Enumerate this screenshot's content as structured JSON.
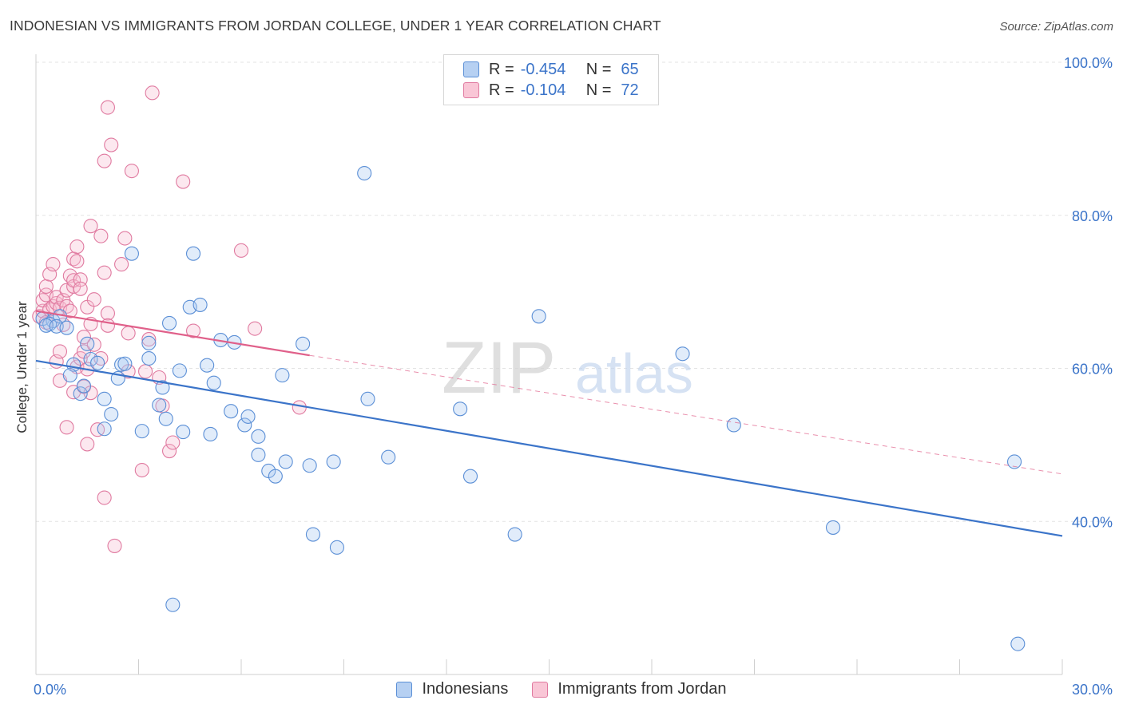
{
  "title": "INDONESIAN VS IMMIGRANTS FROM JORDAN COLLEGE, UNDER 1 YEAR CORRELATION CHART",
  "source": "Source: ZipAtlas.com",
  "watermark": {
    "part1": "ZIP",
    "part2": "atlas"
  },
  "legend": {
    "rows": [
      {
        "r_label": "R =",
        "r_value": "-0.454",
        "n_label": "N =",
        "n_value": "65",
        "color": "#a9c8f0",
        "border": "#5b8fd6"
      },
      {
        "r_label": "R =",
        "r_value": "-0.104",
        "n_label": "N =",
        "n_value": "72",
        "color": "#f7bcd0",
        "border": "#e07aa0"
      }
    ]
  },
  "bottom_legend": [
    {
      "label": "Indonesians",
      "color": "#b6d0f2",
      "border": "#5b8fd6"
    },
    {
      "label": "Immigrants from Jordan",
      "color": "#f9c6d6",
      "border": "#e07aa0"
    }
  ],
  "chart_data": {
    "type": "scatter",
    "title": "INDONESIAN VS IMMIGRANTS FROM JORDAN COLLEGE, UNDER 1 YEAR CORRELATION CHART",
    "xlabel": "",
    "ylabel": "College, Under 1 year",
    "xlim": [
      0,
      30
    ],
    "ylim": [
      20,
      100
    ],
    "x_tick_labels": [
      "0.0%",
      "30.0%"
    ],
    "y_ticks": [
      40,
      60,
      80,
      100
    ],
    "y_tick_labels": [
      "40.0%",
      "60.0%",
      "80.0%",
      "100.0%"
    ],
    "colors": {
      "blue": "#3b74c9",
      "pink": "#e0608a",
      "tick_label": "#3b74c9"
    },
    "series": [
      {
        "name": "Indonesians",
        "color": "#5b8fd6",
        "fill": "rgba(169,200,240,0.35)",
        "trend": {
          "x": [
            0,
            30
          ],
          "y": [
            61,
            38.1
          ],
          "dashed": false
        },
        "points": [
          [
            0.2,
            66.5
          ],
          [
            0.5,
            66.2
          ],
          [
            0.4,
            65.8
          ],
          [
            0.3,
            65.6
          ],
          [
            0.7,
            66.8
          ],
          [
            0.6,
            65.5
          ],
          [
            0.9,
            65.3
          ],
          [
            1.1,
            60.5
          ],
          [
            1.0,
            59.1
          ],
          [
            1.3,
            56.7
          ],
          [
            1.4,
            57.7
          ],
          [
            1.5,
            63.2
          ],
          [
            1.6,
            61.2
          ],
          [
            1.8,
            60.7
          ],
          [
            2.0,
            56.0
          ],
          [
            2.2,
            54.0
          ],
          [
            2.0,
            52.1
          ],
          [
            2.4,
            58.7
          ],
          [
            2.5,
            60.5
          ],
          [
            2.6,
            60.6
          ],
          [
            2.8,
            75.0
          ],
          [
            3.1,
            51.8
          ],
          [
            3.3,
            63.3
          ],
          [
            3.3,
            61.3
          ],
          [
            3.6,
            55.2
          ],
          [
            3.7,
            57.5
          ],
          [
            3.8,
            53.4
          ],
          [
            3.9,
            65.9
          ],
          [
            4.0,
            29.1
          ],
          [
            4.2,
            59.7
          ],
          [
            4.3,
            51.7
          ],
          [
            4.5,
            68.0
          ],
          [
            4.6,
            75.0
          ],
          [
            4.8,
            68.3
          ],
          [
            5.0,
            60.4
          ],
          [
            5.1,
            51.4
          ],
          [
            5.2,
            58.1
          ],
          [
            5.4,
            63.7
          ],
          [
            5.7,
            54.4
          ],
          [
            5.8,
            63.4
          ],
          [
            6.1,
            52.6
          ],
          [
            6.2,
            53.7
          ],
          [
            6.5,
            51.1
          ],
          [
            6.5,
            48.7
          ],
          [
            6.8,
            46.6
          ],
          [
            7.0,
            45.9
          ],
          [
            7.2,
            59.1
          ],
          [
            7.3,
            47.8
          ],
          [
            7.8,
            63.2
          ],
          [
            8.0,
            47.3
          ],
          [
            8.1,
            38.3
          ],
          [
            8.7,
            47.8
          ],
          [
            8.8,
            36.6
          ],
          [
            9.6,
            85.5
          ],
          [
            9.7,
            56.0
          ],
          [
            10.3,
            48.4
          ],
          [
            12.4,
            54.7
          ],
          [
            12.7,
            45.9
          ],
          [
            14.0,
            38.3
          ],
          [
            14.7,
            66.8
          ],
          [
            18.9,
            61.9
          ],
          [
            20.4,
            52.6
          ],
          [
            23.3,
            39.2
          ],
          [
            28.6,
            47.8
          ],
          [
            28.7,
            24.0
          ]
        ]
      },
      {
        "name": "Immigrants from Jordan",
        "color": "#e07aa0",
        "fill": "rgba(247,188,208,0.35)",
        "trend": {
          "x": [
            0,
            8.0
          ],
          "y": [
            67.5,
            61.7
          ],
          "dashed": false,
          "ext_x": [
            8.0,
            30
          ],
          "ext_y": [
            61.7,
            46.2
          ]
        },
        "points": [
          [
            0.1,
            66.8
          ],
          [
            0.2,
            67.5
          ],
          [
            0.2,
            68.9
          ],
          [
            0.3,
            69.6
          ],
          [
            0.3,
            66.0
          ],
          [
            0.3,
            70.7
          ],
          [
            0.4,
            67.7
          ],
          [
            0.4,
            72.3
          ],
          [
            0.5,
            73.6
          ],
          [
            0.5,
            68.1
          ],
          [
            0.6,
            68.5
          ],
          [
            0.6,
            69.3
          ],
          [
            0.6,
            60.9
          ],
          [
            0.7,
            67.9
          ],
          [
            0.7,
            58.4
          ],
          [
            0.7,
            62.2
          ],
          [
            0.8,
            65.7
          ],
          [
            0.8,
            68.9
          ],
          [
            0.9,
            70.2
          ],
          [
            0.9,
            68.1
          ],
          [
            0.9,
            52.3
          ],
          [
            1.0,
            72.1
          ],
          [
            1.0,
            67.5
          ],
          [
            1.1,
            70.7
          ],
          [
            1.1,
            74.3
          ],
          [
            1.1,
            71.5
          ],
          [
            1.2,
            74.0
          ],
          [
            1.1,
            56.9
          ],
          [
            1.2,
            75.9
          ],
          [
            1.2,
            60.2
          ],
          [
            1.3,
            71.6
          ],
          [
            1.3,
            70.4
          ],
          [
            1.3,
            61.3
          ],
          [
            1.4,
            62.2
          ],
          [
            1.4,
            57.6
          ],
          [
            1.4,
            64.1
          ],
          [
            1.5,
            68.0
          ],
          [
            1.5,
            59.9
          ],
          [
            1.5,
            50.1
          ],
          [
            1.6,
            78.6
          ],
          [
            1.6,
            56.8
          ],
          [
            1.6,
            65.8
          ],
          [
            1.7,
            69.0
          ],
          [
            1.7,
            63.1
          ],
          [
            1.8,
            52.0
          ],
          [
            1.9,
            61.3
          ],
          [
            1.9,
            77.3
          ],
          [
            2.0,
            87.1
          ],
          [
            2.0,
            72.5
          ],
          [
            2.0,
            43.1
          ],
          [
            2.1,
            67.2
          ],
          [
            2.1,
            65.6
          ],
          [
            2.1,
            94.1
          ],
          [
            2.2,
            89.2
          ],
          [
            2.3,
            36.8
          ],
          [
            2.5,
            73.6
          ],
          [
            2.6,
            77.0
          ],
          [
            2.7,
            64.6
          ],
          [
            2.7,
            59.6
          ],
          [
            2.8,
            85.8
          ],
          [
            3.1,
            46.7
          ],
          [
            3.2,
            59.6
          ],
          [
            3.3,
            63.8
          ],
          [
            3.4,
            96.0
          ],
          [
            3.6,
            58.8
          ],
          [
            3.7,
            55.1
          ],
          [
            3.9,
            49.2
          ],
          [
            4.0,
            50.3
          ],
          [
            4.3,
            84.4
          ],
          [
            4.6,
            64.9
          ],
          [
            6.0,
            75.4
          ],
          [
            6.4,
            65.2
          ],
          [
            7.7,
            54.9
          ]
        ]
      }
    ]
  }
}
